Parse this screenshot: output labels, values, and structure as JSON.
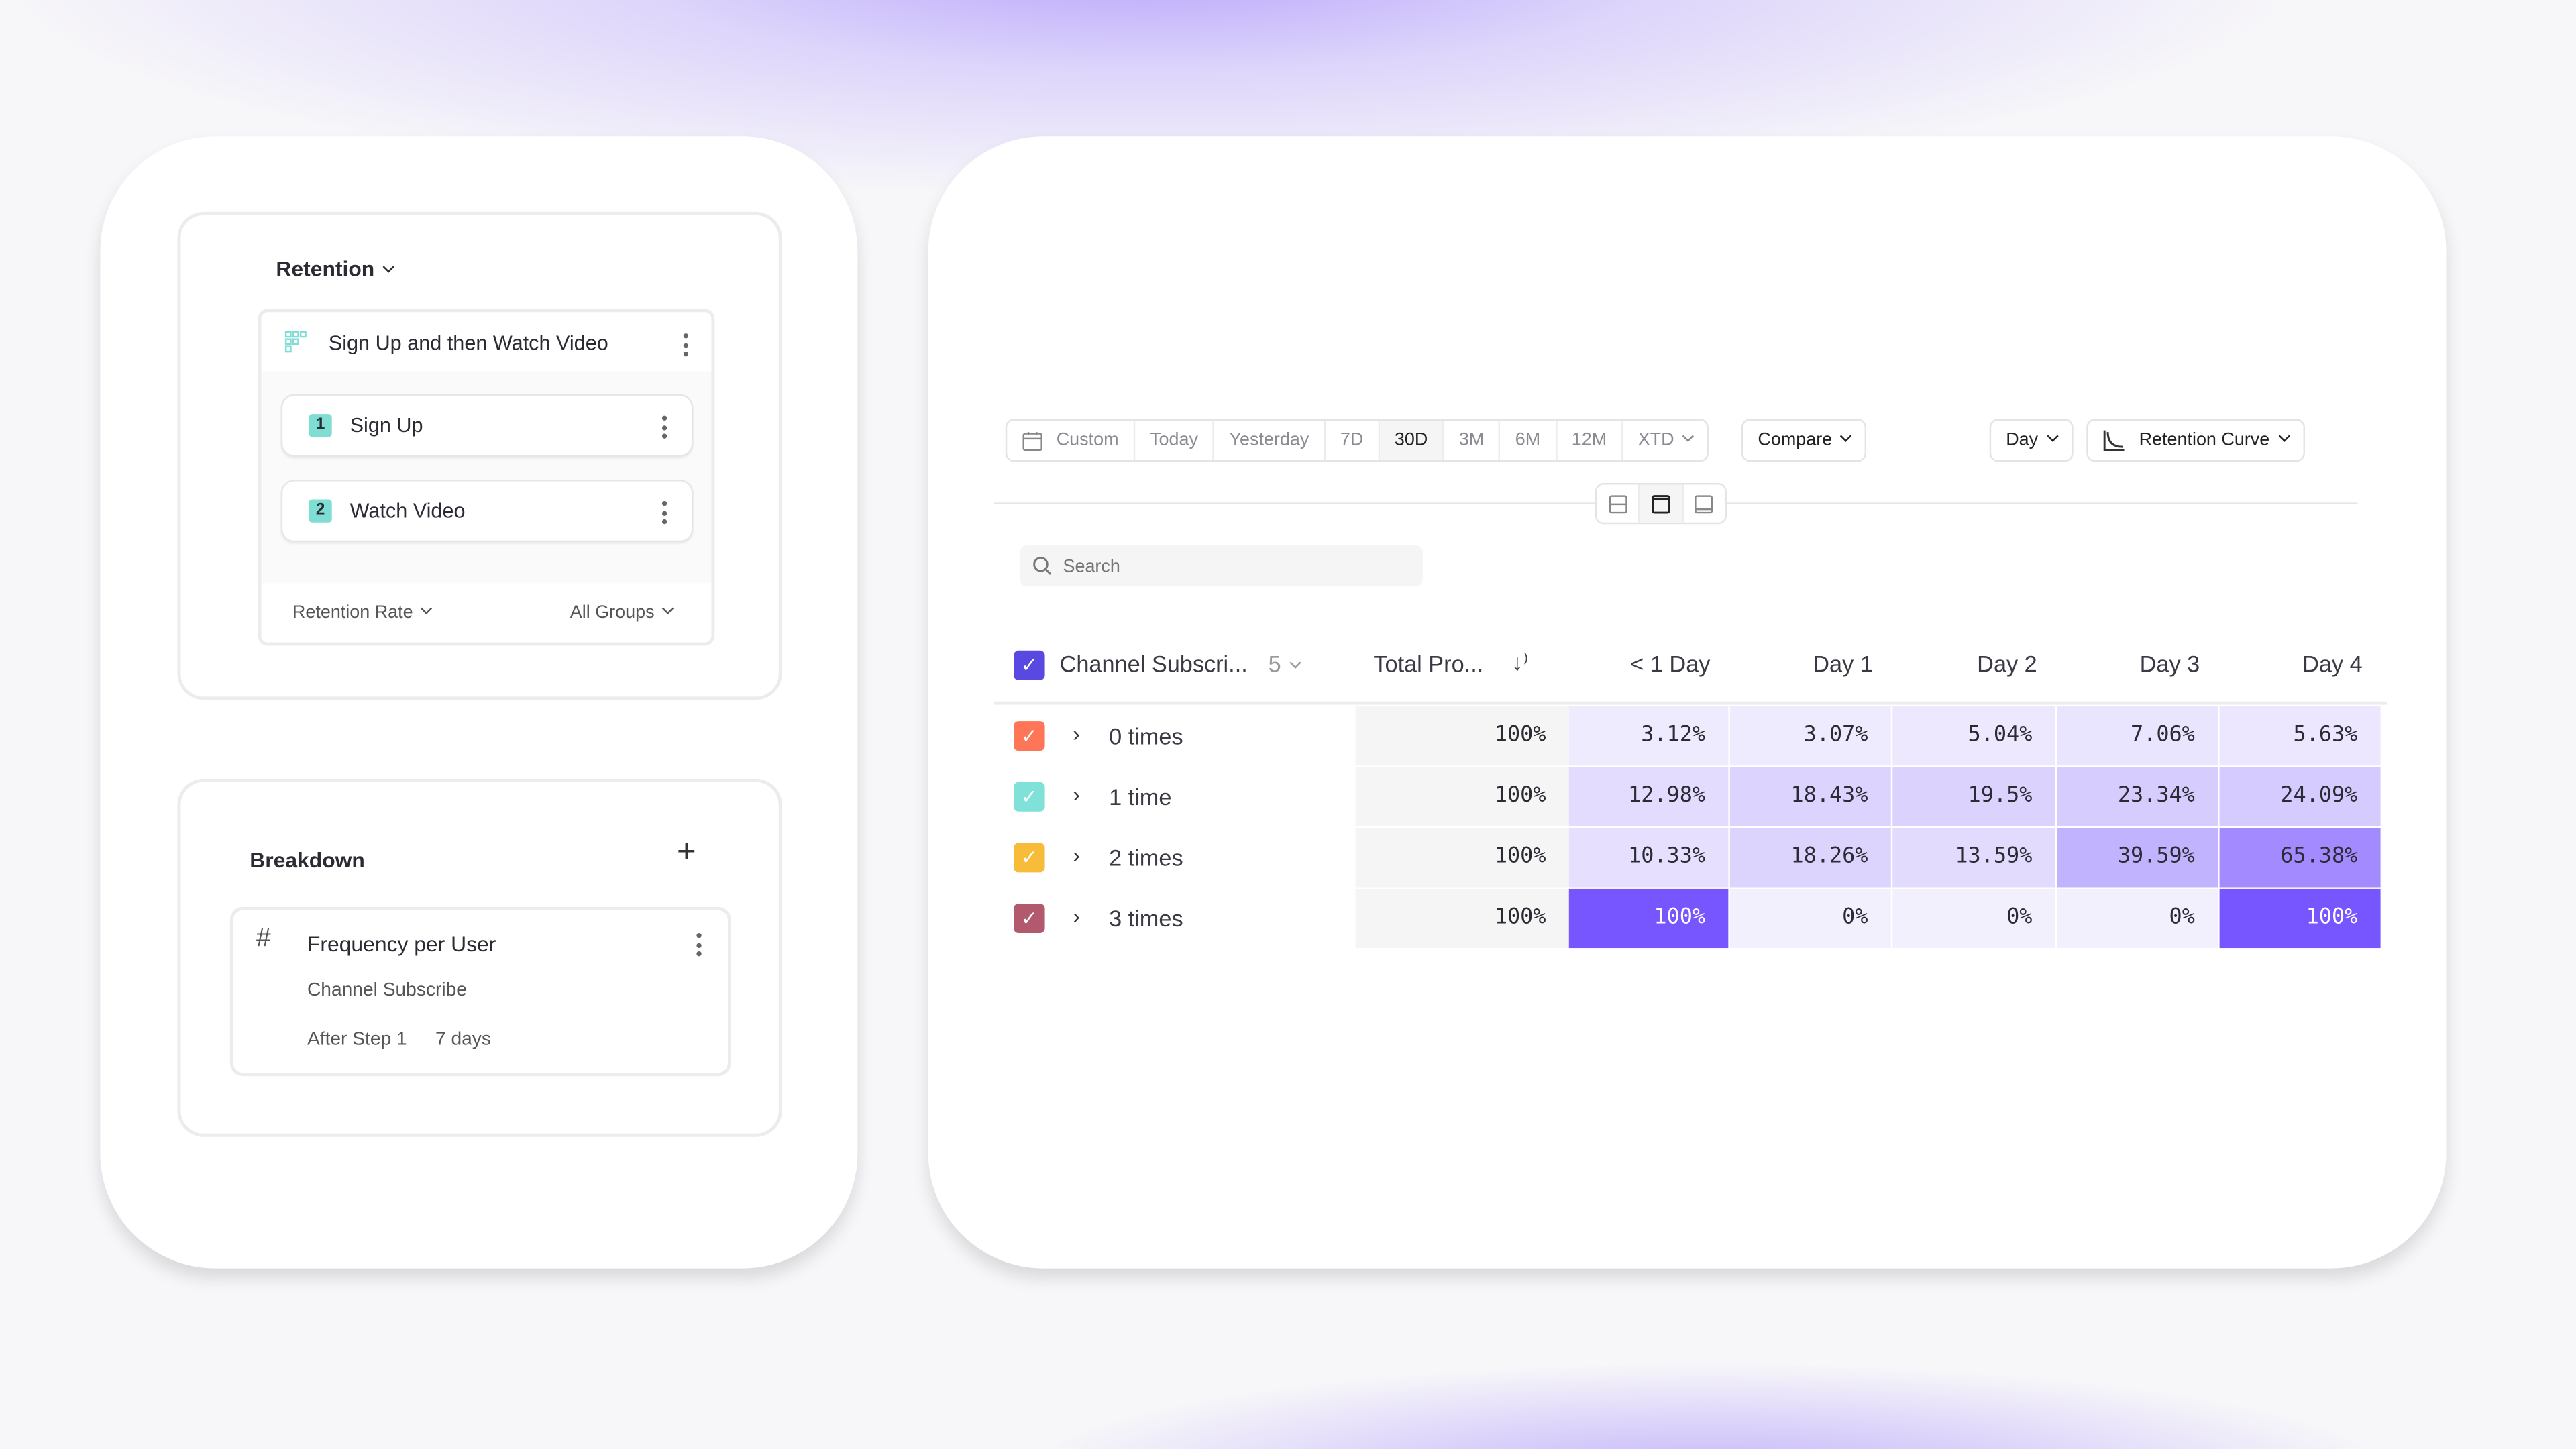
{
  "query": {
    "type_label": "Retention",
    "group_title": "Sign Up and then Watch Video",
    "steps": [
      {
        "num": "1",
        "label": "Sign Up"
      },
      {
        "num": "2",
        "label": "Watch Video"
      }
    ],
    "measure_label": "Retention Rate",
    "groups_label": "All Groups"
  },
  "breakdown": {
    "title": "Breakdown",
    "property": "Frequency per User",
    "event": "Channel Subscribe",
    "step": "After Step 1",
    "window": "7 days"
  },
  "toolbar": {
    "date_ranges": [
      "Custom",
      "Today",
      "Yesterday",
      "7D",
      "30D",
      "3M",
      "6M",
      "12M",
      "XTD"
    ],
    "selected_range": "30D",
    "compare_label": "Compare",
    "interval_label": "Day",
    "chart_type_label": "Retention Curve"
  },
  "search": {
    "placeholder": "Search",
    "value": ""
  },
  "table": {
    "group_header": "Channel Subscri...",
    "group_count": "5",
    "total_header": "Total Pro...",
    "columns": [
      "< 1 Day",
      "Day 1",
      "Day 2",
      "Day 3",
      "Day 4"
    ],
    "rows": [
      {
        "label": "0 times",
        "color": "#ff7557",
        "total": "100%",
        "values": [
          "3.12%",
          "3.07%",
          "5.04%",
          "7.06%",
          "5.63%"
        ]
      },
      {
        "label": "1 time",
        "color": "#80e1d9",
        "total": "100%",
        "values": [
          "12.98%",
          "18.43%",
          "19.5%",
          "23.34%",
          "24.09%"
        ]
      },
      {
        "label": "2 times",
        "color": "#f8bc3b",
        "total": "100%",
        "values": [
          "10.33%",
          "18.26%",
          "13.59%",
          "39.59%",
          "65.38%"
        ]
      },
      {
        "label": "3 times",
        "color": "#b2596e",
        "total": "100%",
        "values": [
          "100%",
          "0%",
          "0%",
          "0%",
          "100%"
        ]
      }
    ]
  },
  "colors": {
    "accent": "#7856ff",
    "header_checkbox": "#5a49e0"
  }
}
